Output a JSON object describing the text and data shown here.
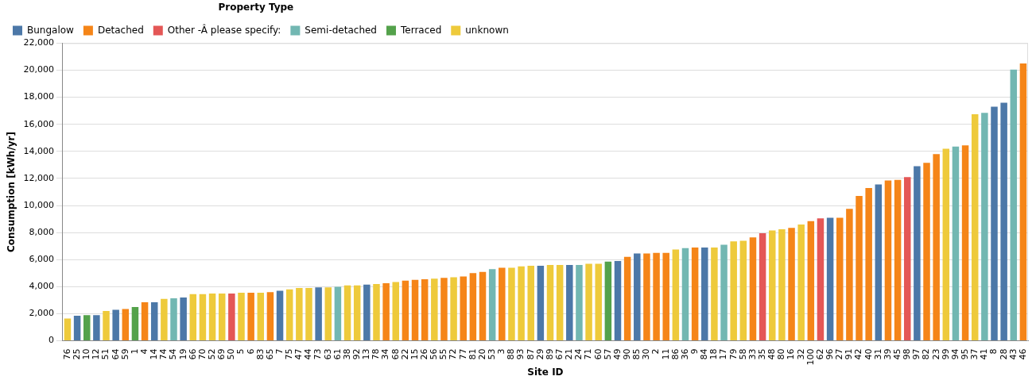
{
  "chart_data": {
    "type": "bar",
    "xlabel": "Site ID",
    "ylabel": "Consumption [kWh/yr]",
    "legend_title": "Property Type",
    "legend": "top left",
    "grid": "y",
    "categories": [
      "76",
      "25",
      "10",
      "12",
      "51",
      "64",
      "59",
      "1",
      "4",
      "14",
      "74",
      "54",
      "19",
      "66",
      "70",
      "52",
      "69",
      "50",
      "5",
      "6",
      "83",
      "65",
      "7",
      "75",
      "47",
      "44",
      "73",
      "63",
      "61",
      "38",
      "92",
      "13",
      "78",
      "34",
      "68",
      "22",
      "15",
      "26",
      "56",
      "55",
      "72",
      "77",
      "81",
      "20",
      "53",
      "3",
      "88",
      "93",
      "87",
      "29",
      "89",
      "67",
      "21",
      "24",
      "71",
      "60",
      "57",
      "49",
      "90",
      "85",
      "30",
      "2",
      "11",
      "86",
      "36",
      "9",
      "84",
      "18",
      "17",
      "79",
      "58",
      "33",
      "35",
      "48",
      "80",
      "16",
      "32",
      "100",
      "62",
      "96",
      "27",
      "91",
      "42",
      "40",
      "31",
      "39",
      "45",
      "98",
      "97",
      "82",
      "23",
      "99",
      "94",
      "95",
      "37",
      "41",
      "8",
      "28",
      "43",
      "46"
    ],
    "ylim": [
      0,
      22000
    ],
    "yticks": [
      {
        "value": 0,
        "label": "0"
      },
      {
        "value": 2000,
        "label": "2,000"
      },
      {
        "value": 4000,
        "label": "4,000"
      },
      {
        "value": 6000,
        "label": "6,000"
      },
      {
        "value": 8000,
        "label": "8,000"
      },
      {
        "value": 10000,
        "label": "10,000"
      },
      {
        "value": 12000,
        "label": "12,000"
      },
      {
        "value": 14000,
        "label": "14,000"
      },
      {
        "value": 16000,
        "label": "16,000"
      },
      {
        "value": 18000,
        "label": "18,000"
      },
      {
        "value": 20000,
        "label": "20,000"
      },
      {
        "value": 22000,
        "label": "22,000"
      }
    ],
    "series": [
      {
        "name": "Bungalow",
        "color": "#4c78a8",
        "values": [
          null,
          1850,
          null,
          1900,
          null,
          2300,
          null,
          null,
          null,
          2850,
          null,
          null,
          3200,
          null,
          null,
          null,
          null,
          null,
          null,
          null,
          null,
          null,
          3700,
          null,
          null,
          null,
          3950,
          null,
          null,
          null,
          null,
          4150,
          null,
          null,
          null,
          null,
          null,
          null,
          null,
          null,
          null,
          null,
          null,
          null,
          null,
          null,
          null,
          null,
          null,
          5550,
          null,
          null,
          5600,
          null,
          null,
          null,
          null,
          5900,
          null,
          6450,
          null,
          null,
          null,
          null,
          null,
          null,
          6900,
          null,
          null,
          null,
          null,
          null,
          null,
          null,
          null,
          null,
          null,
          null,
          null,
          9100,
          null,
          null,
          null,
          null,
          11550,
          null,
          null,
          null,
          12900,
          null,
          null,
          null,
          null,
          null,
          null,
          null,
          17300,
          17600,
          null,
          null
        ]
      },
      {
        "name": "Detached",
        "color": "#f58518",
        "values": [
          null,
          null,
          null,
          null,
          null,
          null,
          2350,
          null,
          2850,
          null,
          null,
          null,
          null,
          null,
          null,
          null,
          null,
          null,
          null,
          3550,
          null,
          3600,
          null,
          null,
          null,
          null,
          null,
          null,
          null,
          null,
          null,
          null,
          null,
          4250,
          null,
          4450,
          4500,
          4550,
          null,
          4650,
          null,
          4750,
          5000,
          5100,
          null,
          5400,
          null,
          null,
          null,
          null,
          null,
          null,
          null,
          null,
          null,
          null,
          null,
          null,
          6200,
          null,
          6450,
          6500,
          6500,
          null,
          null,
          6900,
          null,
          null,
          null,
          null,
          null,
          7650,
          null,
          null,
          null,
          8350,
          null,
          8850,
          null,
          null,
          9100,
          9750,
          10700,
          11300,
          null,
          11850,
          11900,
          null,
          null,
          13150,
          13800,
          null,
          null,
          14450,
          null,
          null,
          null,
          null,
          null,
          20500
        ]
      },
      {
        "name": "Other -Â please specify:",
        "color": "#e45756",
        "values": [
          null,
          null,
          null,
          null,
          null,
          null,
          null,
          null,
          null,
          null,
          null,
          null,
          null,
          null,
          null,
          null,
          null,
          3500,
          null,
          null,
          null,
          null,
          null,
          null,
          null,
          null,
          null,
          null,
          null,
          null,
          null,
          null,
          null,
          null,
          null,
          null,
          null,
          null,
          null,
          null,
          null,
          null,
          null,
          null,
          null,
          null,
          null,
          null,
          null,
          null,
          null,
          null,
          null,
          null,
          null,
          null,
          null,
          null,
          null,
          null,
          null,
          null,
          null,
          null,
          null,
          null,
          null,
          null,
          null,
          null,
          null,
          null,
          7950,
          null,
          null,
          null,
          null,
          null,
          9050,
          null,
          null,
          null,
          null,
          null,
          null,
          null,
          null,
          12100,
          null,
          null,
          null,
          null,
          null,
          null,
          null,
          null,
          null,
          null,
          null,
          null
        ]
      },
      {
        "name": "Semi-detached",
        "color": "#72b7b2",
        "values": [
          null,
          null,
          null,
          null,
          null,
          null,
          null,
          null,
          null,
          null,
          null,
          3150,
          null,
          null,
          null,
          null,
          null,
          null,
          null,
          null,
          null,
          null,
          null,
          null,
          null,
          null,
          null,
          null,
          4000,
          null,
          null,
          null,
          null,
          null,
          null,
          null,
          null,
          null,
          null,
          null,
          null,
          null,
          null,
          null,
          5300,
          null,
          null,
          null,
          null,
          null,
          null,
          null,
          null,
          5600,
          null,
          null,
          null,
          null,
          null,
          null,
          null,
          null,
          null,
          null,
          6850,
          null,
          null,
          null,
          7100,
          null,
          null,
          null,
          null,
          null,
          null,
          null,
          null,
          null,
          null,
          null,
          null,
          null,
          null,
          null,
          null,
          null,
          null,
          null,
          null,
          null,
          null,
          null,
          14350,
          null,
          null,
          16850,
          null,
          null,
          20050,
          null
        ]
      },
      {
        "name": "Terraced",
        "color": "#54a24b",
        "values": [
          null,
          null,
          1900,
          null,
          null,
          null,
          null,
          2500,
          null,
          null,
          null,
          null,
          null,
          null,
          null,
          null,
          null,
          null,
          null,
          null,
          null,
          null,
          null,
          null,
          null,
          null,
          null,
          null,
          null,
          null,
          null,
          null,
          null,
          null,
          null,
          null,
          null,
          null,
          null,
          null,
          null,
          null,
          null,
          null,
          null,
          null,
          null,
          null,
          null,
          null,
          null,
          null,
          null,
          null,
          null,
          null,
          5850,
          null,
          null,
          null,
          null,
          null,
          null,
          null,
          null,
          null,
          null,
          null,
          null,
          null,
          null,
          null,
          null,
          null,
          null,
          null,
          null,
          null,
          null,
          null,
          null,
          null,
          null,
          null,
          null,
          null,
          null,
          null,
          null,
          null,
          null,
          null,
          null,
          null,
          null,
          null,
          null,
          null,
          null,
          null
        ]
      },
      {
        "name": "unknown",
        "color": "#eeca3b",
        "values": [
          1650,
          null,
          null,
          null,
          2200,
          null,
          null,
          null,
          null,
          null,
          3100,
          null,
          null,
          3450,
          3450,
          3500,
          3500,
          null,
          3550,
          null,
          3550,
          null,
          null,
          3800,
          3900,
          3900,
          null,
          3950,
          null,
          4100,
          4100,
          null,
          4200,
          null,
          4350,
          null,
          null,
          null,
          4600,
          null,
          4700,
          null,
          null,
          null,
          null,
          null,
          5400,
          5500,
          5550,
          null,
          5600,
          5600,
          null,
          null,
          5700,
          5700,
          null,
          null,
          null,
          null,
          null,
          null,
          null,
          6750,
          null,
          null,
          null,
          6900,
          null,
          7350,
          7400,
          null,
          null,
          8150,
          8250,
          null,
          8600,
          null,
          null,
          null,
          null,
          null,
          null,
          null,
          null,
          null,
          null,
          null,
          null,
          null,
          null,
          14200,
          null,
          null,
          16750,
          null,
          null,
          null,
          null,
          null
        ]
      }
    ]
  }
}
